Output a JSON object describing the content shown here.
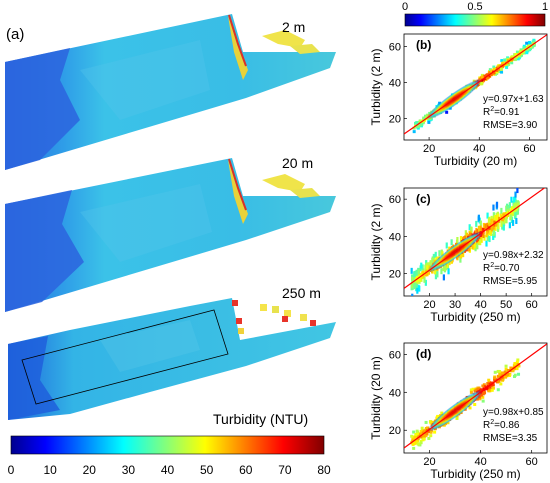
{
  "panel_a": {
    "label": "(a)",
    "maps": [
      {
        "resolution_label": "2 m"
      },
      {
        "resolution_label": "20 m"
      },
      {
        "resolution_label": "250 m"
      }
    ],
    "colorbar": {
      "title": "Turbidity (NTU)",
      "ticks": [
        "0",
        "10",
        "20",
        "30",
        "40",
        "50",
        "60",
        "70",
        "80"
      ],
      "range": [
        0,
        80
      ]
    }
  },
  "density_colorbar": {
    "ticks": [
      "0",
      "0.5",
      "1"
    ],
    "range": [
      0,
      1
    ]
  },
  "colors": {
    "jet_low": "#00008f",
    "jet_high": "#800000",
    "fit_line": "#ff0000",
    "map_water": "#33b4e6",
    "map_shallow": "#2a6fe0"
  },
  "chart_data": [
    {
      "type": "scatter",
      "panel": "(b)",
      "xlabel": "Turbidity (20 m)",
      "ylabel": "Turbidity (2 m)",
      "xlim": [
        10,
        67
      ],
      "ylim": [
        8,
        67
      ],
      "xticks": [
        20,
        40,
        60
      ],
      "yticks": [
        20,
        40,
        60
      ],
      "fit": {
        "slope": 0.97,
        "intercept": 1.63
      },
      "stats": {
        "equation": "y=0.97x+1.63",
        "r2_label": "R",
        "r2_value": "=0.91",
        "rmse": "RMSE=3.90"
      }
    },
    {
      "type": "scatter",
      "panel": "(c)",
      "xlabel": "Turbidity (250 m)",
      "ylabel": "Turbidity (2 m)",
      "xlim": [
        10,
        66
      ],
      "ylim": [
        8,
        66
      ],
      "xticks": [
        20,
        30,
        40,
        50,
        60
      ],
      "yticks": [
        20,
        40,
        60
      ],
      "fit": {
        "slope": 0.98,
        "intercept": 2.32
      },
      "stats": {
        "equation": "y=0.98x+2.32",
        "r2_label": "R",
        "r2_value": "=0.70",
        "rmse": "RMSE=5.95"
      }
    },
    {
      "type": "scatter",
      "panel": "(d)",
      "xlabel": "Turbidity (250 m)",
      "ylabel": "Turbidity (20 m)",
      "xlim": [
        10,
        66
      ],
      "ylim": [
        8,
        66
      ],
      "xticks": [
        20,
        40,
        60
      ],
      "yticks": [
        20,
        40,
        60
      ],
      "fit": {
        "slope": 0.98,
        "intercept": 0.85
      },
      "stats": {
        "equation": "y=0.98x+0.85",
        "r2_label": "R",
        "r2_value": "=0.86",
        "rmse": "RMSE=3.35"
      }
    }
  ]
}
